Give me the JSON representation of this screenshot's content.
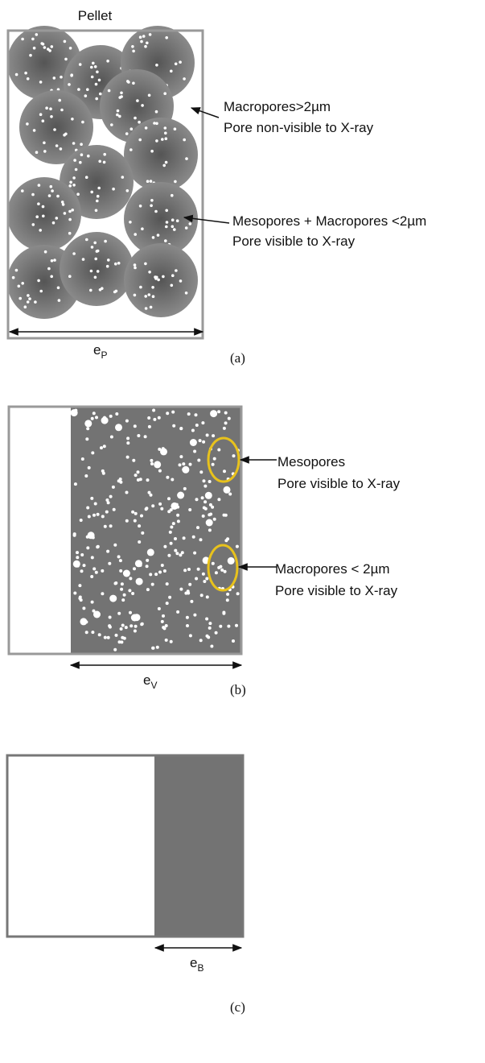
{
  "panels": [
    {
      "title": "Pellet",
      "annotations": [
        {
          "lines": [
            "Macropores>2µm",
            "Pore non-visible to X-ray"
          ]
        },
        {
          "lines": [
            "Mesopores + Macropores <2µm",
            "Pore visible to X-ray"
          ]
        }
      ],
      "dimension": {
        "symbol": "e",
        "subscript": "P"
      },
      "label": "(a)"
    },
    {
      "annotations": [
        {
          "lines": [
            "Mesopores",
            "Pore visible to X-ray"
          ]
        },
        {
          "lines": [
            "Macropores < 2µm",
            "Pore visible to X-ray"
          ]
        }
      ],
      "dimension": {
        "symbol": "e",
        "subscript": "V"
      },
      "label": "(b)"
    },
    {
      "dimension": {
        "symbol": "e",
        "subscript": "B"
      },
      "label": "(c)"
    }
  ]
}
